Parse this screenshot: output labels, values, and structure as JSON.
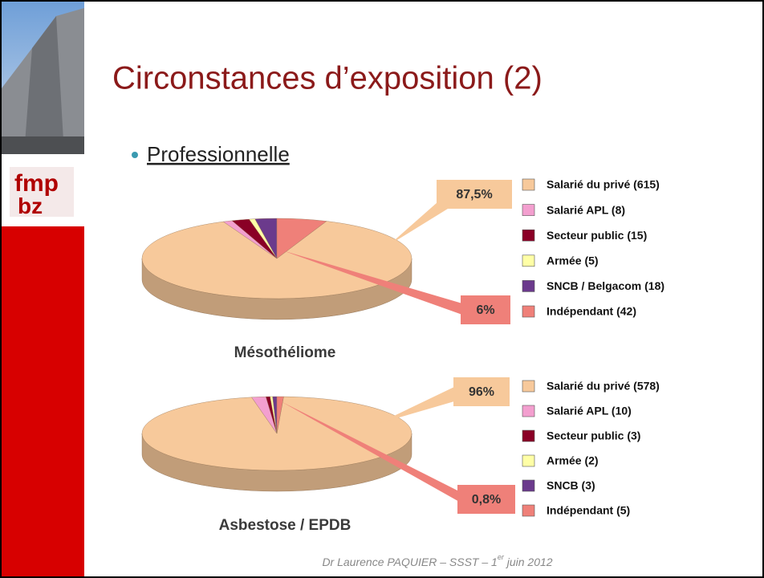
{
  "slide": {
    "title": "Circonstances d’exposition (2)",
    "bullet": "Professionnelle",
    "logo": [
      "fmp",
      "bz"
    ],
    "footer": {
      "before": "Dr Laurence PAQUIER – SSST – 1",
      "sup": "er",
      "after": " juin 2012"
    }
  },
  "chart_data": [
    {
      "type": "pie",
      "title": "Mésothéliome",
      "categories": [
        "Salarié du privé (615)",
        "Salarié APL (8)",
        "Secteur public (15)",
        "Armée (5)",
        "SNCB / Belgacom (18)",
        "Indépendant (42)"
      ],
      "values": [
        87.5,
        1.1,
        2.1,
        0.7,
        2.6,
        6.0
      ],
      "value_labels": [
        "87,5%",
        null,
        null,
        null,
        null,
        "6%"
      ],
      "colors": [
        "#f7c99b",
        "#f39fcf",
        "#8a0026",
        "#ffffa6",
        "#6b3a8c",
        "#ef8079"
      ]
    },
    {
      "type": "pie",
      "title": "Asbestose / EPDB",
      "categories": [
        "Salarié du privé (578)",
        "Salarié APL (10)",
        "Secteur public (3)",
        "Armée (2)",
        "SNCB (3)",
        "Indépendant (5)"
      ],
      "values": [
        96.2,
        1.7,
        0.5,
        0.3,
        0.5,
        0.8
      ],
      "value_labels": [
        "96%",
        null,
        null,
        null,
        null,
        "0,8%"
      ],
      "colors": [
        "#f7c99b",
        "#f39fcf",
        "#8a0026",
        "#ffffa6",
        "#6b3a8c",
        "#ef8079"
      ]
    }
  ]
}
